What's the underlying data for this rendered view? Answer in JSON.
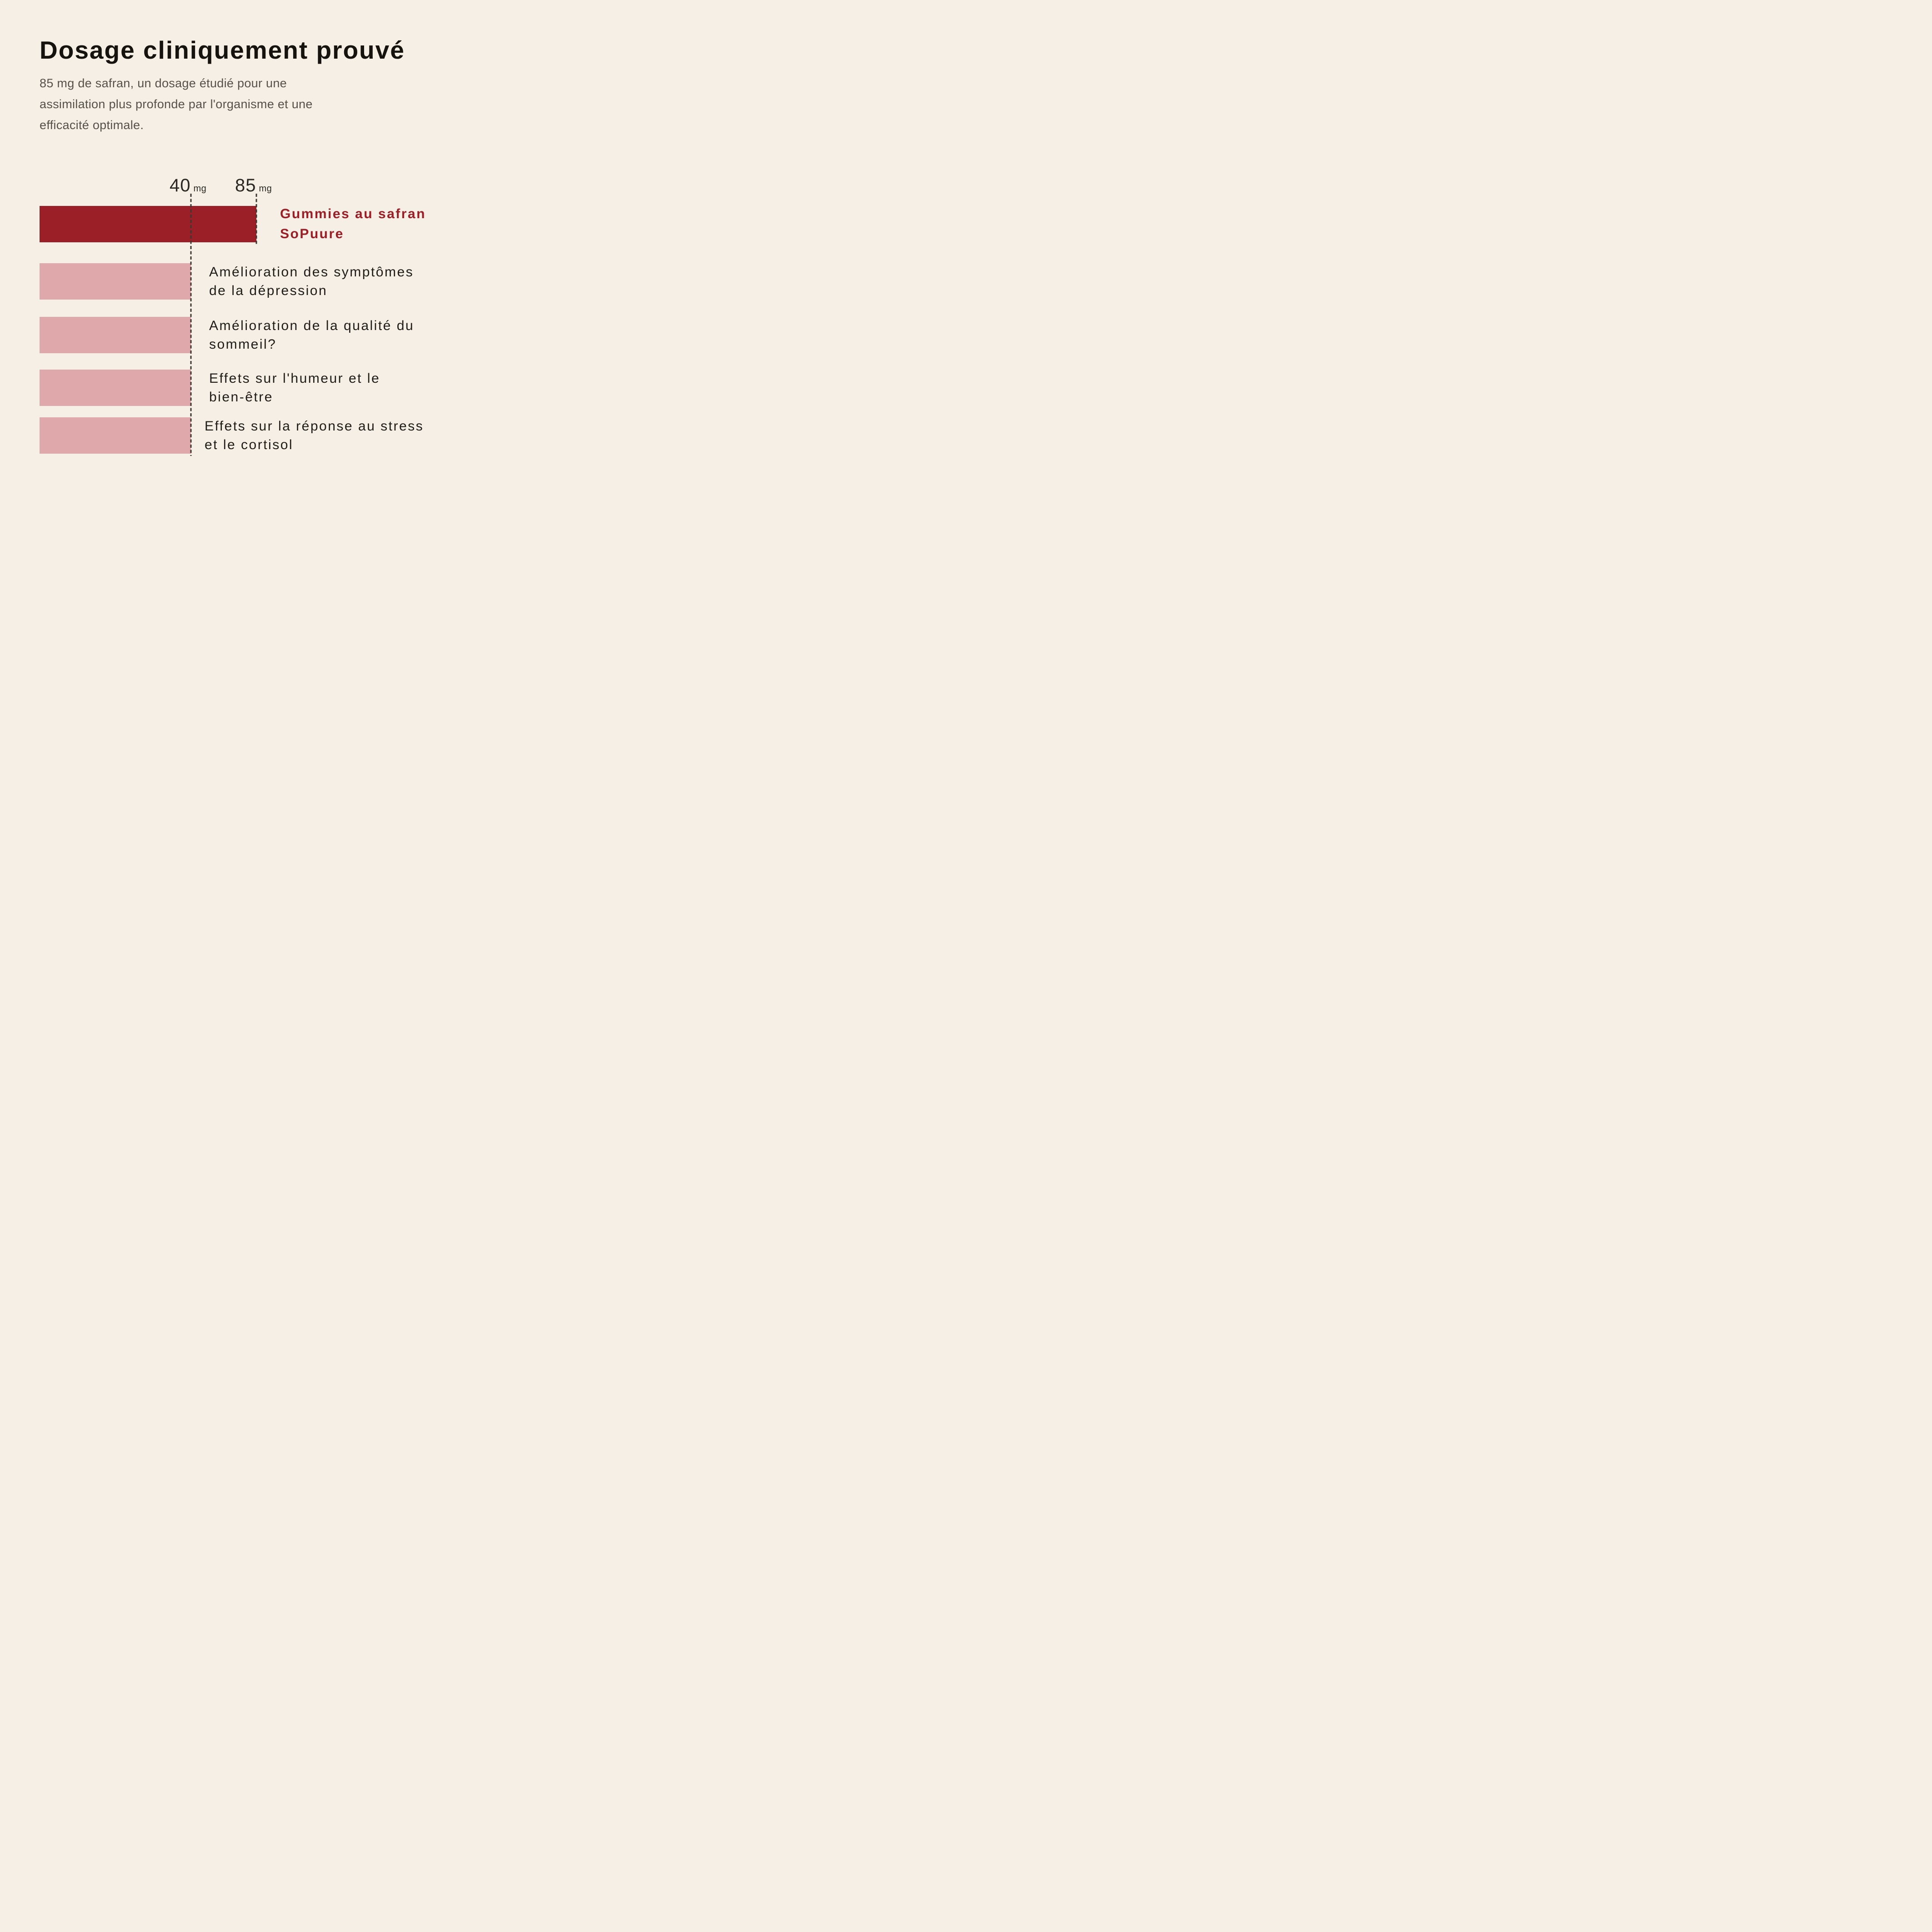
{
  "page": {
    "background": "#F5EFE6"
  },
  "header": {
    "title": "Dosage cliniquement prouvé",
    "subtitle_lines": [
      "85 mg de safran, un dosage étudié pour une",
      "assimilation plus profonde par l'organisme et une",
      "efficacité optimale."
    ]
  },
  "chart_data": {
    "type": "bar",
    "orientation": "horizontal",
    "title": "",
    "unit": "mg",
    "categories": [
      "Gummies au safran SoPuure",
      "Amélioration des symptômes de la dépression",
      "Amélioration de la qualité du sommeil?",
      "Effets sur l'humeur et le bien-être",
      "Effets sur la réponse au stress et le cortisol"
    ],
    "values": [
      85,
      40,
      40,
      40,
      40
    ],
    "bar_colors": [
      "#9B1F27",
      "#DFA8AB",
      "#DFA8AB",
      "#DFA8AB",
      "#DFA8AB"
    ],
    "reference_lines": [
      {
        "value": 40,
        "label": "40",
        "unit": "mg"
      },
      {
        "value": 85,
        "label": "85",
        "unit": "mg"
      }
    ],
    "xlim": [
      0,
      85
    ],
    "grid": false,
    "legend": "none",
    "axis_note": "dashed vertical reference lines at 40 mg and 85 mg; spacing decorative, not proportional"
  },
  "bar_label_lines": [
    [
      "Gummies au safran",
      "SoPuure"
    ],
    [
      "Amélioration des symptômes",
      "de la dépression"
    ],
    [
      "Amélioration de la qualité du",
      "sommeil?"
    ],
    [
      "Effets sur l'humeur et le",
      "bien-être"
    ],
    [
      "Effets sur la réponse au stress",
      "et le cortisol"
    ]
  ],
  "colors": {
    "background": "#F5EFE6",
    "primary_red": "#9B1F27",
    "light_pink": "#DFA8AB",
    "dashed_line": "#3B3733",
    "title_text": "#16130F",
    "subtitle_text": "#56514A",
    "label_text": "#201D19",
    "tick_text": "#2B2823"
  }
}
